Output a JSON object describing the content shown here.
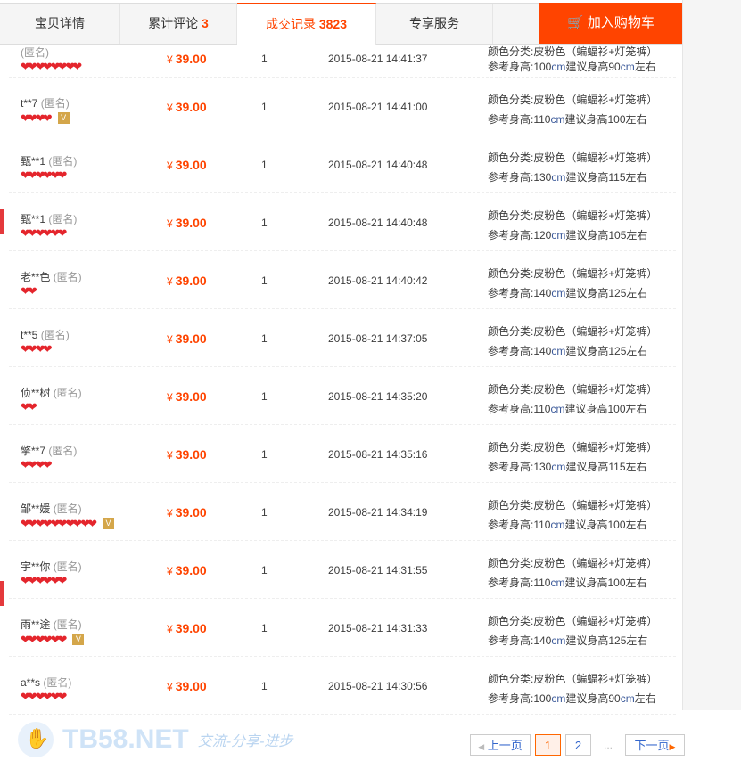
{
  "tabs": [
    {
      "label": "宝贝详情",
      "count": ""
    },
    {
      "label": "累计评论",
      "count": "3"
    },
    {
      "label": "成交记录",
      "count": "3823",
      "active": true
    },
    {
      "label": "专享服务",
      "count": ""
    }
  ],
  "cart_button": {
    "label": "加入购物车",
    "icon": "cart-icon"
  },
  "colors": {
    "accent": "#ff4400",
    "heart": "#e4252c",
    "link": "#3366cc"
  },
  "currency": "¥",
  "records": [
    {
      "name": "",
      "anon": "(匿名)",
      "hearts": 4,
      "badge": false,
      "price": "39.00",
      "qty": "1",
      "time": "2015-08-21 14:41:37",
      "color": "颜色分类:皮粉色（蝙蝠衫+灯笼裤）",
      "h1": "参考身高:100",
      "cm1": "cm",
      "h2": "建议身高90",
      "cm2": "cm",
      "h3": "左右"
    },
    {
      "name": "t**7",
      "anon": "(匿名)",
      "hearts": 2,
      "badge": true,
      "price": "39.00",
      "qty": "1",
      "time": "2015-08-21 14:41:00",
      "color": "颜色分类:皮粉色（蝙蝠衫+灯笼裤）",
      "h1": "参考身高:110",
      "cm1": "cm",
      "h2": "建议身高100左右",
      "cm2": "",
      "h3": ""
    },
    {
      "name": "甄**1",
      "anon": "(匿名)",
      "hearts": 3,
      "badge": false,
      "price": "39.00",
      "qty": "1",
      "time": "2015-08-21 14:40:48",
      "color": "颜色分类:皮粉色（蝙蝠衫+灯笼裤）",
      "h1": "参考身高:130",
      "cm1": "cm",
      "h2": "建议身高115左右",
      "cm2": "",
      "h3": ""
    },
    {
      "name": "甄**1",
      "anon": "(匿名)",
      "hearts": 3,
      "badge": false,
      "price": "39.00",
      "qty": "1",
      "time": "2015-08-21 14:40:48",
      "color": "颜色分类:皮粉色（蝙蝠衫+灯笼裤）",
      "h1": "参考身高:120",
      "cm1": "cm",
      "h2": "建议身高105左右",
      "cm2": "",
      "h3": ""
    },
    {
      "name": "老**色",
      "anon": "(匿名)",
      "hearts": 1,
      "badge": false,
      "price": "39.00",
      "qty": "1",
      "time": "2015-08-21 14:40:42",
      "color": "颜色分类:皮粉色（蝙蝠衫+灯笼裤）",
      "h1": "参考身高:140",
      "cm1": "cm",
      "h2": "建议身高125左右",
      "cm2": "",
      "h3": ""
    },
    {
      "name": "t**5",
      "anon": "(匿名)",
      "hearts": 2,
      "badge": false,
      "price": "39.00",
      "qty": "1",
      "time": "2015-08-21 14:37:05",
      "color": "颜色分类:皮粉色（蝙蝠衫+灯笼裤）",
      "h1": "参考身高:140",
      "cm1": "cm",
      "h2": "建议身高125左右",
      "cm2": "",
      "h3": ""
    },
    {
      "name": "侦**树",
      "anon": "(匿名)",
      "hearts": 1,
      "badge": false,
      "price": "39.00",
      "qty": "1",
      "time": "2015-08-21 14:35:20",
      "color": "颜色分类:皮粉色（蝙蝠衫+灯笼裤）",
      "h1": "参考身高:110",
      "cm1": "cm",
      "h2": "建议身高100左右",
      "cm2": "",
      "h3": ""
    },
    {
      "name": "擎**7",
      "anon": "(匿名)",
      "hearts": 2,
      "badge": false,
      "price": "39.00",
      "qty": "1",
      "time": "2015-08-21 14:35:16",
      "color": "颜色分类:皮粉色（蝙蝠衫+灯笼裤）",
      "h1": "参考身高:130",
      "cm1": "cm",
      "h2": "建议身高115左右",
      "cm2": "",
      "h3": ""
    },
    {
      "name": "邹**媛",
      "anon": "(匿名)",
      "hearts": 5,
      "badge": true,
      "price": "39.00",
      "qty": "1",
      "time": "2015-08-21 14:34:19",
      "color": "颜色分类:皮粉色（蝙蝠衫+灯笼裤）",
      "h1": "参考身高:110",
      "cm1": "cm",
      "h2": "建议身高100左右",
      "cm2": "",
      "h3": ""
    },
    {
      "name": "宇**你",
      "anon": "(匿名)",
      "hearts": 3,
      "badge": false,
      "price": "39.00",
      "qty": "1",
      "time": "2015-08-21 14:31:55",
      "color": "颜色分类:皮粉色（蝙蝠衫+灯笼裤）",
      "h1": "参考身高:110",
      "cm1": "cm",
      "h2": "建议身高100左右",
      "cm2": "",
      "h3": ""
    },
    {
      "name": "雨**途",
      "anon": "(匿名)",
      "hearts": 3,
      "badge": true,
      "price": "39.00",
      "qty": "1",
      "time": "2015-08-21 14:31:33",
      "color": "颜色分类:皮粉色（蝙蝠衫+灯笼裤）",
      "h1": "参考身高:140",
      "cm1": "cm",
      "h2": "建议身高125左右",
      "cm2": "",
      "h3": ""
    },
    {
      "name": "a**s",
      "anon": "(匿名)",
      "hearts": 3,
      "badge": false,
      "price": "39.00",
      "qty": "1",
      "time": "2015-08-21 14:30:56",
      "color": "颜色分类:皮粉色（蝙蝠衫+灯笼裤）",
      "h1": "参考身高:100",
      "cm1": "cm",
      "h2": "建议身高90",
      "cm2": "cm",
      "h3": "左右"
    }
  ],
  "pagination": {
    "prev": "上一页",
    "pages": [
      "1",
      "2"
    ],
    "current": "1",
    "ellipsis": "...",
    "next": "下一页"
  },
  "watermark": {
    "text": "TB58.NET",
    "slogan": "交流-分享-进步"
  }
}
